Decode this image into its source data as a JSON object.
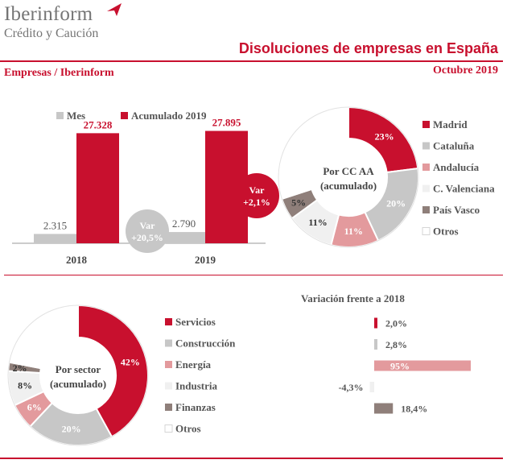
{
  "header": {
    "logo_name": "Iberinform",
    "logo_sub": "Crédito y Caución",
    "title": "Disoluciones de empresas en España",
    "source": "Empresas / Iberinform",
    "period": "Octubre 2019"
  },
  "colors": {
    "brand_red": "#c8102e",
    "grey": "#c7c7c7",
    "pink": "#e39a9d",
    "light": "#f0f0f0",
    "taupe": "#8f7f7a",
    "white": "#ffffff"
  },
  "chart_data": [
    {
      "type": "bar",
      "categories": [
        "2018",
        "2019"
      ],
      "series": [
        {
          "name": "Mes",
          "values": [
            2315,
            2790
          ],
          "labels": [
            "2.315",
            "2.790"
          ],
          "color": "#c7c7c7"
        },
        {
          "name": "Acumulado 2019",
          "values": [
            27328,
            27895
          ],
          "labels": [
            "27.328",
            "27.895"
          ],
          "color": "#c8102e"
        }
      ],
      "ylim": [
        0,
        30000
      ],
      "annotations": [
        {
          "line1": "Var",
          "line2": "+20,5%",
          "color": "#c7c7c7"
        },
        {
          "line1": "Var",
          "line2": "+2,1%",
          "color": "#c8102e"
        }
      ]
    },
    {
      "type": "pie",
      "center_label": [
        "Por CC AA",
        "(acumulado)"
      ],
      "slices": [
        {
          "name": "Madrid",
          "value": 23,
          "label": "23%",
          "color": "#c8102e"
        },
        {
          "name": "Cataluña",
          "value": 20,
          "label": "20%",
          "color": "#c7c7c7"
        },
        {
          "name": "Andalucía",
          "value": 11,
          "label": "11%",
          "color": "#e39a9d"
        },
        {
          "name": "C. Valenciana",
          "value": 11,
          "label": "11%",
          "color": "#f0f0f0"
        },
        {
          "name": "País Vasco",
          "value": 5,
          "label": "5%",
          "color": "#8f7f7a"
        },
        {
          "name": "Otros",
          "value": 30,
          "label": "",
          "color": "#ffffff"
        }
      ]
    },
    {
      "type": "pie",
      "center_label": [
        "Por sector",
        "(acumulado)"
      ],
      "slices": [
        {
          "name": "Servicios",
          "value": 42,
          "label": "42%",
          "color": "#c8102e"
        },
        {
          "name": "Construcción",
          "value": 20,
          "label": "20%",
          "color": "#c7c7c7"
        },
        {
          "name": "Energía",
          "value": 6,
          "label": "6%",
          "color": "#e39a9d"
        },
        {
          "name": "Industria",
          "value": 8,
          "label": "8%",
          "color": "#f0f0f0"
        },
        {
          "name": "Finanzas",
          "value": 2,
          "label": "2%",
          "color": "#8f7f7a"
        },
        {
          "name": "Otros",
          "value": 22,
          "label": "",
          "color": "#ffffff"
        }
      ]
    },
    {
      "type": "bar",
      "orientation": "horizontal",
      "title": "Variación frente a 2018",
      "categories": [
        "Servicios",
        "Construcción",
        "Energía",
        "Industria",
        "Finanzas",
        "Otros"
      ],
      "values": [
        2.0,
        2.8,
        95,
        -4.3,
        18.4,
        null
      ],
      "labels": [
        "2,0%",
        "2,8%",
        "95%",
        "-4,3%",
        "18,4%",
        ""
      ],
      "colors": [
        "#c8102e",
        "#c7c7c7",
        "#e39a9d",
        "#f0f0f0",
        "#8f7f7a",
        "#ffffff"
      ]
    }
  ]
}
